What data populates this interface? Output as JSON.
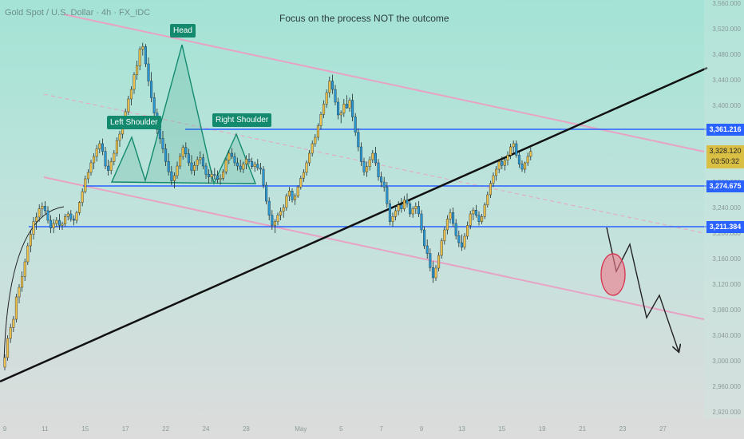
{
  "symbol_label": "Gold Spot / U.S. Dollar · 4h · FX_IDC",
  "headline": "Focus on the process NOT the outcome",
  "chart_data": {
    "type": "candlestick",
    "title": "Gold Spot / U.S. Dollar · 4h · FX_IDC",
    "annotation": "Focus on the process NOT the outcome",
    "y_axis": {
      "ticks": [
        2920,
        2960,
        3000,
        3040,
        3080,
        3120,
        3160,
        3200,
        3240,
        3280,
        3320,
        3360,
        3400,
        3440,
        3480,
        3520,
        3560
      ],
      "tick_labels": [
        "2,920.000",
        "2,960.000",
        "3,000.000",
        "3,040.000",
        "3,080.000",
        "3,120.000",
        "3,160.000",
        "3,200.000",
        "3,240.000",
        "3,280.000",
        "3,320.000",
        "3,360.000",
        "3,400.000",
        "3,440.000",
        "3,480.000",
        "3,520.000",
        "3,560.000"
      ],
      "range": [
        2910,
        3565
      ]
    },
    "x_axis": {
      "tick_labels": [
        "9",
        "11",
        "15",
        "17",
        "22",
        "24",
        "28",
        "May",
        "5",
        "7",
        "9",
        "13",
        "15",
        "19",
        "21",
        "23",
        "27"
      ],
      "tick_index": [
        0,
        14,
        28,
        42,
        56,
        70,
        84,
        103,
        117,
        131,
        145,
        159,
        173,
        187,
        201,
        215,
        229
      ]
    },
    "levels": [
      {
        "price": 3361.216,
        "label": "3,361.216"
      },
      {
        "price": 3274.675,
        "label": "3,274.675"
      },
      {
        "price": 3211.384,
        "label": "3,211.384"
      }
    ],
    "current_price": {
      "label": "3,328.120",
      "countdown": "03:50:32"
    },
    "pattern_labels": [
      "Left Shoulder",
      "Head",
      "Right Shoulder"
    ],
    "candles": [
      [
        2990,
        3010,
        2985,
        3005
      ],
      [
        3005,
        3040,
        3000,
        3035
      ],
      [
        3035,
        3058,
        3028,
        3052
      ],
      [
        3052,
        3070,
        3045,
        3065
      ],
      [
        3065,
        3105,
        3060,
        3100
      ],
      [
        3100,
        3120,
        3090,
        3115
      ],
      [
        3115,
        3140,
        3108,
        3132
      ],
      [
        3132,
        3160,
        3125,
        3155
      ],
      [
        3155,
        3185,
        3150,
        3180
      ],
      [
        3180,
        3205,
        3170,
        3198
      ],
      [
        3198,
        3225,
        3190,
        3218
      ],
      [
        3218,
        3232,
        3205,
        3225
      ],
      [
        3225,
        3245,
        3218,
        3238
      ],
      [
        3238,
        3248,
        3225,
        3242
      ],
      [
        3242,
        3250,
        3230,
        3235
      ],
      [
        3235,
        3242,
        3215,
        3220
      ],
      [
        3220,
        3228,
        3200,
        3208
      ],
      [
        3208,
        3222,
        3200,
        3215
      ],
      [
        3215,
        3225,
        3210,
        3220
      ],
      [
        3220,
        3230,
        3205,
        3212
      ],
      [
        3212,
        3218,
        3205,
        3214
      ],
      [
        3214,
        3230,
        3210,
        3226
      ],
      [
        3226,
        3234,
        3220,
        3230
      ],
      [
        3230,
        3236,
        3218,
        3222
      ],
      [
        3222,
        3228,
        3212,
        3220
      ],
      [
        3220,
        3235,
        3215,
        3232
      ],
      [
        3232,
        3250,
        3228,
        3248
      ],
      [
        3248,
        3270,
        3242,
        3265
      ],
      [
        3265,
        3290,
        3262,
        3285
      ],
      [
        3285,
        3300,
        3278,
        3295
      ],
      [
        3295,
        3315,
        3290,
        3310
      ],
      [
        3310,
        3325,
        3300,
        3320
      ],
      [
        3320,
        3338,
        3312,
        3332
      ],
      [
        3332,
        3345,
        3325,
        3340
      ],
      [
        3340,
        3348,
        3322,
        3328
      ],
      [
        3328,
        3335,
        3300,
        3305
      ],
      [
        3305,
        3315,
        3290,
        3298
      ],
      [
        3298,
        3318,
        3292,
        3312
      ],
      [
        3312,
        3330,
        3306,
        3325
      ],
      [
        3325,
        3350,
        3320,
        3345
      ],
      [
        3345,
        3360,
        3335,
        3355
      ],
      [
        3355,
        3380,
        3348,
        3375
      ],
      [
        3375,
        3395,
        3365,
        3390
      ],
      [
        3390,
        3415,
        3385,
        3410
      ],
      [
        3410,
        3430,
        3400,
        3425
      ],
      [
        3425,
        3452,
        3418,
        3448
      ],
      [
        3448,
        3470,
        3440,
        3462
      ],
      [
        3462,
        3492,
        3455,
        3488
      ],
      [
        3488,
        3498,
        3478,
        3492
      ],
      [
        3492,
        3496,
        3460,
        3465
      ],
      [
        3465,
        3475,
        3430,
        3438
      ],
      [
        3438,
        3452,
        3405,
        3412
      ],
      [
        3412,
        3420,
        3380,
        3388
      ],
      [
        3388,
        3395,
        3355,
        3362
      ],
      [
        3362,
        3372,
        3340,
        3348
      ],
      [
        3348,
        3360,
        3325,
        3332
      ],
      [
        3332,
        3340,
        3305,
        3312
      ],
      [
        3312,
        3325,
        3290,
        3296
      ],
      [
        3296,
        3305,
        3275,
        3282
      ],
      [
        3282,
        3295,
        3270,
        3290
      ],
      [
        3290,
        3312,
        3285,
        3305
      ],
      [
        3305,
        3325,
        3300,
        3320
      ],
      [
        3320,
        3338,
        3315,
        3334
      ],
      [
        3334,
        3342,
        3318,
        3324
      ],
      [
        3324,
        3332,
        3305,
        3310
      ],
      [
        3310,
        3322,
        3292,
        3298
      ],
      [
        3298,
        3312,
        3290,
        3306
      ],
      [
        3306,
        3320,
        3298,
        3315
      ],
      [
        3315,
        3328,
        3308,
        3318
      ],
      [
        3318,
        3324,
        3300,
        3305
      ],
      [
        3305,
        3310,
        3285,
        3292
      ],
      [
        3292,
        3300,
        3278,
        3288
      ],
      [
        3288,
        3298,
        3280,
        3292
      ],
      [
        3292,
        3302,
        3284,
        3290
      ],
      [
        3290,
        3298,
        3278,
        3284
      ],
      [
        3284,
        3292,
        3276,
        3286
      ],
      [
        3286,
        3300,
        3282,
        3296
      ],
      [
        3296,
        3318,
        3292,
        3314
      ],
      [
        3314,
        3330,
        3308,
        3325
      ],
      [
        3325,
        3333,
        3316,
        3320
      ],
      [
        3320,
        3326,
        3305,
        3310
      ],
      [
        3310,
        3318,
        3298,
        3305
      ],
      [
        3305,
        3315,
        3295,
        3300
      ],
      [
        3300,
        3312,
        3294,
        3308
      ],
      [
        3308,
        3322,
        3300,
        3316
      ],
      [
        3316,
        3325,
        3308,
        3312
      ],
      [
        3312,
        3318,
        3300,
        3304
      ],
      [
        3304,
        3312,
        3296,
        3308
      ],
      [
        3308,
        3316,
        3298,
        3302
      ],
      [
        3302,
        3310,
        3292,
        3300
      ],
      [
        3300,
        3305,
        3270,
        3275
      ],
      [
        3275,
        3280,
        3245,
        3250
      ],
      [
        3250,
        3256,
        3220,
        3228
      ],
      [
        3228,
        3236,
        3205,
        3212
      ],
      [
        3212,
        3222,
        3200,
        3218
      ],
      [
        3218,
        3232,
        3212,
        3228
      ],
      [
        3228,
        3240,
        3220,
        3234
      ],
      [
        3234,
        3245,
        3224,
        3240
      ],
      [
        3240,
        3262,
        3235,
        3258
      ],
      [
        3258,
        3272,
        3250,
        3266
      ],
      [
        3266,
        3270,
        3248,
        3252
      ],
      [
        3252,
        3262,
        3244,
        3258
      ],
      [
        3258,
        3275,
        3255,
        3272
      ],
      [
        3272,
        3290,
        3268,
        3286
      ],
      [
        3286,
        3300,
        3280,
        3295
      ],
      [
        3295,
        3314,
        3290,
        3310
      ],
      [
        3310,
        3330,
        3305,
        3325
      ],
      [
        3325,
        3345,
        3320,
        3340
      ],
      [
        3340,
        3355,
        3335,
        3350
      ],
      [
        3350,
        3372,
        3345,
        3368
      ],
      [
        3368,
        3390,
        3362,
        3386
      ],
      [
        3386,
        3408,
        3380,
        3402
      ],
      [
        3402,
        3425,
        3396,
        3420
      ],
      [
        3420,
        3445,
        3412,
        3438
      ],
      [
        3438,
        3448,
        3418,
        3425
      ],
      [
        3425,
        3432,
        3400,
        3405
      ],
      [
        3405,
        3412,
        3378,
        3385
      ],
      [
        3385,
        3392,
        3372,
        3388
      ],
      [
        3388,
        3410,
        3382,
        3402
      ],
      [
        3402,
        3416,
        3395,
        3396
      ],
      [
        3396,
        3412,
        3390,
        3408
      ],
      [
        3408,
        3418,
        3375,
        3382
      ],
      [
        3382,
        3388,
        3352,
        3358
      ],
      [
        3358,
        3364,
        3328,
        3335
      ],
      [
        3335,
        3342,
        3305,
        3312
      ],
      [
        3312,
        3318,
        3290,
        3296
      ],
      [
        3296,
        3312,
        3288,
        3304
      ],
      [
        3304,
        3320,
        3298,
        3315
      ],
      [
        3315,
        3330,
        3310,
        3325
      ],
      [
        3325,
        3335,
        3305,
        3310
      ],
      [
        3310,
        3316,
        3282,
        3288
      ],
      [
        3288,
        3296,
        3272,
        3280
      ],
      [
        3280,
        3288,
        3265,
        3272
      ],
      [
        3272,
        3280,
        3240,
        3246
      ],
      [
        3246,
        3252,
        3212,
        3218
      ],
      [
        3218,
        3232,
        3210,
        3226
      ],
      [
        3226,
        3240,
        3220,
        3235
      ],
      [
        3235,
        3250,
        3228,
        3244
      ],
      [
        3244,
        3255,
        3232,
        3238
      ],
      [
        3238,
        3258,
        3234,
        3252
      ],
      [
        3252,
        3262,
        3240,
        3246
      ],
      [
        3246,
        3252,
        3225,
        3230
      ],
      [
        3230,
        3242,
        3224,
        3238
      ],
      [
        3238,
        3248,
        3230,
        3242
      ],
      [
        3242,
        3250,
        3225,
        3230
      ],
      [
        3230,
        3236,
        3200,
        3205
      ],
      [
        3205,
        3210,
        3175,
        3180
      ],
      [
        3180,
        3190,
        3160,
        3168
      ],
      [
        3168,
        3176,
        3140,
        3146
      ],
      [
        3146,
        3156,
        3122,
        3130
      ],
      [
        3130,
        3150,
        3125,
        3145
      ],
      [
        3145,
        3170,
        3140,
        3165
      ],
      [
        3165,
        3192,
        3160,
        3188
      ],
      [
        3188,
        3210,
        3182,
        3205
      ],
      [
        3205,
        3228,
        3198,
        3222
      ],
      [
        3222,
        3238,
        3215,
        3232
      ],
      [
        3232,
        3240,
        3210,
        3215
      ],
      [
        3215,
        3222,
        3190,
        3196
      ],
      [
        3196,
        3204,
        3178,
        3185
      ],
      [
        3185,
        3198,
        3172,
        3178
      ],
      [
        3178,
        3200,
        3174,
        3195
      ],
      [
        3195,
        3218,
        3190,
        3212
      ],
      [
        3212,
        3235,
        3206,
        3230
      ],
      [
        3230,
        3240,
        3220,
        3236
      ],
      [
        3236,
        3244,
        3224,
        3228
      ],
      [
        3228,
        3234,
        3212,
        3218
      ],
      [
        3218,
        3230,
        3214,
        3226
      ],
      [
        3226,
        3248,
        3222,
        3244
      ],
      [
        3244,
        3265,
        3240,
        3260
      ],
      [
        3260,
        3282,
        3255,
        3278
      ],
      [
        3278,
        3295,
        3272,
        3290
      ],
      [
        3290,
        3305,
        3282,
        3300
      ],
      [
        3300,
        3316,
        3294,
        3312
      ],
      [
        3312,
        3320,
        3300,
        3306
      ],
      [
        3306,
        3318,
        3298,
        3314
      ],
      [
        3314,
        3328,
        3306,
        3322
      ],
      [
        3322,
        3340,
        3316,
        3335
      ],
      [
        3335,
        3345,
        3326,
        3340
      ],
      [
        3340,
        3345,
        3318,
        3322
      ],
      [
        3322,
        3328,
        3302,
        3308
      ],
      [
        3308,
        3314,
        3296,
        3300
      ],
      [
        3300,
        3312,
        3294,
        3310
      ],
      [
        3310,
        3326,
        3305,
        3320
      ],
      [
        3320,
        3334,
        3314,
        3328
      ]
    ]
  }
}
